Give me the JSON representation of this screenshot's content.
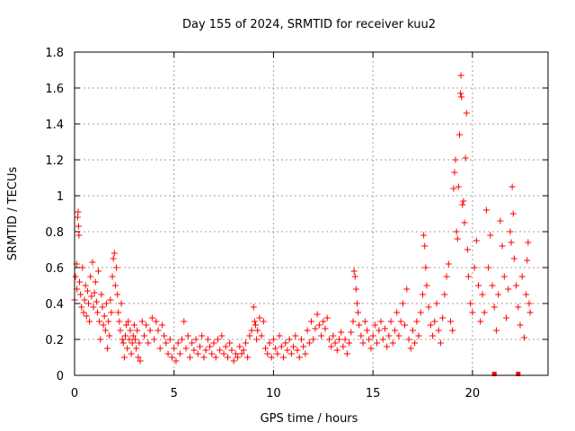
{
  "chart_data": {
    "type": "scatter",
    "title": "Day 155 of 2024, SRMTID for receiver kuu2",
    "xlabel": "GPS time / hours",
    "ylabel": "SRMTID / TECUs",
    "xlim": [
      0,
      23.8
    ],
    "ylim": [
      0,
      1.8
    ],
    "xticks": [
      0,
      5,
      10,
      15,
      20
    ],
    "xtick_labels": [
      "0",
      "5",
      "10",
      "15",
      "20"
    ],
    "yticks": [
      0,
      0.2,
      0.4,
      0.6,
      0.8,
      1,
      1.2,
      1.4,
      1.6,
      1.8
    ],
    "ytick_labels": [
      "0",
      "0.2",
      "0.4",
      "0.6",
      "0.8",
      "1",
      "1.2",
      "1.4",
      "1.6",
      "1.8"
    ],
    "grid": true,
    "marker": "+",
    "series": [
      {
        "name": "SRMTID",
        "color": "#ff0000",
        "points": [
          [
            0.0,
            0.42
          ],
          [
            0.05,
            0.55
          ],
          [
            0.1,
            0.62
          ],
          [
            0.12,
            0.48
          ],
          [
            0.15,
            0.88
          ],
          [
            0.18,
            0.91
          ],
          [
            0.2,
            0.83
          ],
          [
            0.22,
            0.78
          ],
          [
            0.25,
            0.52
          ],
          [
            0.3,
            0.45
          ],
          [
            0.35,
            0.38
          ],
          [
            0.4,
            0.6
          ],
          [
            0.45,
            0.35
          ],
          [
            0.5,
            0.42
          ],
          [
            0.55,
            0.5
          ],
          [
            0.6,
            0.33
          ],
          [
            0.65,
            0.47
          ],
          [
            0.7,
            0.4
          ],
          [
            0.75,
            0.3
          ],
          [
            0.8,
            0.55
          ],
          [
            0.85,
            0.44
          ],
          [
            0.9,
            0.63
          ],
          [
            0.95,
            0.38
          ],
          [
            1.0,
            0.46
          ],
          [
            1.05,
            0.52
          ],
          [
            1.1,
            0.41
          ],
          [
            1.15,
            0.35
          ],
          [
            1.2,
            0.58
          ],
          [
            1.25,
            0.3
          ],
          [
            1.3,
            0.2
          ],
          [
            1.35,
            0.45
          ],
          [
            1.4,
            0.38
          ],
          [
            1.45,
            0.28
          ],
          [
            1.5,
            0.33
          ],
          [
            1.55,
            0.25
          ],
          [
            1.6,
            0.4
          ],
          [
            1.65,
            0.15
          ],
          [
            1.7,
            0.3
          ],
          [
            1.75,
            0.22
          ],
          [
            1.8,
            0.42
          ],
          [
            1.85,
            0.35
          ],
          [
            1.9,
            0.55
          ],
          [
            1.95,
            0.65
          ],
          [
            2.0,
            0.68
          ],
          [
            2.05,
            0.5
          ],
          [
            2.1,
            0.6
          ],
          [
            2.15,
            0.45
          ],
          [
            2.2,
            0.35
          ],
          [
            2.25,
            0.3
          ],
          [
            2.3,
            0.25
          ],
          [
            2.35,
            0.4
          ],
          [
            2.4,
            0.2
          ],
          [
            2.45,
            0.18
          ],
          [
            2.5,
            0.1
          ],
          [
            2.55,
            0.22
          ],
          [
            2.6,
            0.28
          ],
          [
            2.65,
            0.15
          ],
          [
            2.7,
            0.3
          ],
          [
            2.75,
            0.2
          ],
          [
            2.8,
            0.25
          ],
          [
            2.85,
            0.12
          ],
          [
            2.9,
            0.18
          ],
          [
            2.95,
            0.22
          ],
          [
            3.0,
            0.28
          ],
          [
            3.05,
            0.2
          ],
          [
            3.1,
            0.15
          ],
          [
            3.15,
            0.25
          ],
          [
            3.2,
            0.1
          ],
          [
            3.25,
            0.18
          ],
          [
            3.3,
            0.08
          ],
          [
            3.4,
            0.3
          ],
          [
            3.5,
            0.22
          ],
          [
            3.6,
            0.28
          ],
          [
            3.7,
            0.18
          ],
          [
            3.8,
            0.25
          ],
          [
            3.9,
            0.32
          ],
          [
            4.0,
            0.2
          ],
          [
            4.1,
            0.3
          ],
          [
            4.2,
            0.25
          ],
          [
            4.3,
            0.15
          ],
          [
            4.4,
            0.28
          ],
          [
            4.5,
            0.22
          ],
          [
            4.6,
            0.18
          ],
          [
            4.7,
            0.12
          ],
          [
            4.8,
            0.2
          ],
          [
            4.9,
            0.1
          ],
          [
            5.0,
            0.15
          ],
          [
            5.1,
            0.08
          ],
          [
            5.2,
            0.18
          ],
          [
            5.3,
            0.12
          ],
          [
            5.4,
            0.2
          ],
          [
            5.5,
            0.3
          ],
          [
            5.6,
            0.15
          ],
          [
            5.7,
            0.22
          ],
          [
            5.8,
            0.1
          ],
          [
            5.9,
            0.18
          ],
          [
            6.0,
            0.14
          ],
          [
            6.1,
            0.2
          ],
          [
            6.2,
            0.12
          ],
          [
            6.3,
            0.16
          ],
          [
            6.4,
            0.22
          ],
          [
            6.5,
            0.1
          ],
          [
            6.6,
            0.14
          ],
          [
            6.7,
            0.2
          ],
          [
            6.8,
            0.16
          ],
          [
            6.9,
            0.12
          ],
          [
            7.0,
            0.18
          ],
          [
            7.1,
            0.1
          ],
          [
            7.2,
            0.2
          ],
          [
            7.3,
            0.14
          ],
          [
            7.4,
            0.22
          ],
          [
            7.5,
            0.12
          ],
          [
            7.6,
            0.16
          ],
          [
            7.7,
            0.1
          ],
          [
            7.8,
            0.18
          ],
          [
            7.9,
            0.14
          ],
          [
            8.0,
            0.08
          ],
          [
            8.1,
            0.12
          ],
          [
            8.2,
            0.1
          ],
          [
            8.3,
            0.16
          ],
          [
            8.4,
            0.12
          ],
          [
            8.5,
            0.14
          ],
          [
            8.6,
            0.18
          ],
          [
            8.7,
            0.1
          ],
          [
            8.8,
            0.22
          ],
          [
            8.9,
            0.25
          ],
          [
            9.0,
            0.38
          ],
          [
            9.05,
            0.3
          ],
          [
            9.1,
            0.28
          ],
          [
            9.15,
            0.2
          ],
          [
            9.2,
            0.25
          ],
          [
            9.3,
            0.32
          ],
          [
            9.4,
            0.22
          ],
          [
            9.5,
            0.3
          ],
          [
            9.6,
            0.15
          ],
          [
            9.7,
            0.12
          ],
          [
            9.8,
            0.18
          ],
          [
            9.9,
            0.1
          ],
          [
            10.0,
            0.2
          ],
          [
            10.1,
            0.15
          ],
          [
            10.2,
            0.12
          ],
          [
            10.3,
            0.22
          ],
          [
            10.4,
            0.16
          ],
          [
            10.5,
            0.1
          ],
          [
            10.6,
            0.18
          ],
          [
            10.7,
            0.14
          ],
          [
            10.8,
            0.2
          ],
          [
            10.9,
            0.12
          ],
          [
            11.0,
            0.16
          ],
          [
            11.1,
            0.22
          ],
          [
            11.2,
            0.14
          ],
          [
            11.3,
            0.1
          ],
          [
            11.4,
            0.2
          ],
          [
            11.5,
            0.16
          ],
          [
            11.6,
            0.12
          ],
          [
            11.7,
            0.25
          ],
          [
            11.8,
            0.18
          ],
          [
            11.9,
            0.3
          ],
          [
            12.0,
            0.2
          ],
          [
            12.1,
            0.26
          ],
          [
            12.2,
            0.34
          ],
          [
            12.3,
            0.28
          ],
          [
            12.4,
            0.22
          ],
          [
            12.5,
            0.3
          ],
          [
            12.6,
            0.26
          ],
          [
            12.7,
            0.32
          ],
          [
            12.8,
            0.2
          ],
          [
            12.9,
            0.16
          ],
          [
            13.0,
            0.22
          ],
          [
            13.1,
            0.18
          ],
          [
            13.2,
            0.14
          ],
          [
            13.3,
            0.2
          ],
          [
            13.4,
            0.24
          ],
          [
            13.5,
            0.16
          ],
          [
            13.6,
            0.2
          ],
          [
            13.7,
            0.12
          ],
          [
            13.8,
            0.18
          ],
          [
            13.9,
            0.24
          ],
          [
            14.0,
            0.3
          ],
          [
            14.05,
            0.58
          ],
          [
            14.1,
            0.55
          ],
          [
            14.15,
            0.48
          ],
          [
            14.2,
            0.4
          ],
          [
            14.25,
            0.35
          ],
          [
            14.3,
            0.28
          ],
          [
            14.4,
            0.22
          ],
          [
            14.5,
            0.18
          ],
          [
            14.6,
            0.3
          ],
          [
            14.7,
            0.25
          ],
          [
            14.8,
            0.2
          ],
          [
            14.9,
            0.15
          ],
          [
            15.0,
            0.22
          ],
          [
            15.1,
            0.28
          ],
          [
            15.2,
            0.18
          ],
          [
            15.3,
            0.25
          ],
          [
            15.4,
            0.3
          ],
          [
            15.5,
            0.2
          ],
          [
            15.6,
            0.26
          ],
          [
            15.7,
            0.16
          ],
          [
            15.8,
            0.22
          ],
          [
            15.9,
            0.3
          ],
          [
            16.0,
            0.18
          ],
          [
            16.1,
            0.25
          ],
          [
            16.2,
            0.35
          ],
          [
            16.3,
            0.22
          ],
          [
            16.4,
            0.3
          ],
          [
            16.5,
            0.4
          ],
          [
            16.6,
            0.28
          ],
          [
            16.7,
            0.48
          ],
          [
            16.8,
            0.2
          ],
          [
            16.9,
            0.15
          ],
          [
            17.0,
            0.25
          ],
          [
            17.1,
            0.18
          ],
          [
            17.2,
            0.3
          ],
          [
            17.3,
            0.22
          ],
          [
            17.4,
            0.35
          ],
          [
            17.5,
            0.45
          ],
          [
            17.55,
            0.78
          ],
          [
            17.6,
            0.72
          ],
          [
            17.65,
            0.6
          ],
          [
            17.7,
            0.5
          ],
          [
            17.8,
            0.38
          ],
          [
            17.9,
            0.28
          ],
          [
            18.0,
            0.22
          ],
          [
            18.1,
            0.3
          ],
          [
            18.2,
            0.4
          ],
          [
            18.3,
            0.25
          ],
          [
            18.4,
            0.18
          ],
          [
            18.5,
            0.32
          ],
          [
            18.6,
            0.45
          ],
          [
            18.7,
            0.55
          ],
          [
            18.8,
            0.62
          ],
          [
            18.9,
            0.3
          ],
          [
            19.0,
            0.25
          ],
          [
            19.05,
            1.04
          ],
          [
            19.1,
            1.13
          ],
          [
            19.15,
            1.2
          ],
          [
            19.2,
            0.8
          ],
          [
            19.25,
            0.76
          ],
          [
            19.3,
            1.05
          ],
          [
            19.35,
            1.34
          ],
          [
            19.4,
            1.57
          ],
          [
            19.42,
            1.67
          ],
          [
            19.45,
            1.55
          ],
          [
            19.5,
            0.95
          ],
          [
            19.55,
            0.97
          ],
          [
            19.6,
            0.85
          ],
          [
            19.65,
            1.21
          ],
          [
            19.7,
            1.46
          ],
          [
            19.75,
            0.7
          ],
          [
            19.8,
            0.55
          ],
          [
            19.9,
            0.4
          ],
          [
            20.0,
            0.35
          ],
          [
            20.1,
            0.6
          ],
          [
            20.2,
            0.75
          ],
          [
            20.3,
            0.5
          ],
          [
            20.4,
            0.3
          ],
          [
            20.5,
            0.45
          ],
          [
            20.6,
            0.35
          ],
          [
            20.7,
            0.92
          ],
          [
            20.8,
            0.6
          ],
          [
            20.9,
            0.78
          ],
          [
            21.0,
            0.5
          ],
          [
            21.1,
            0.38
          ],
          [
            21.2,
            0.25
          ],
          [
            21.3,
            0.45
          ],
          [
            21.4,
            0.86
          ],
          [
            21.5,
            0.72
          ],
          [
            21.6,
            0.55
          ],
          [
            21.7,
            0.32
          ],
          [
            21.8,
            0.48
          ],
          [
            21.9,
            0.8
          ],
          [
            21.95,
            0.74
          ],
          [
            22.0,
            1.05
          ],
          [
            22.05,
            0.9
          ],
          [
            22.1,
            0.65
          ],
          [
            22.2,
            0.5
          ],
          [
            22.3,
            0.38
          ],
          [
            22.4,
            0.28
          ],
          [
            22.5,
            0.55
          ],
          [
            22.6,
            0.21
          ],
          [
            22.7,
            0.45
          ],
          [
            22.75,
            0.64
          ],
          [
            22.8,
            0.74
          ],
          [
            22.85,
            0.4
          ],
          [
            22.9,
            0.35
          ]
        ]
      }
    ],
    "zero_markers": [
      21.1,
      22.3
    ]
  }
}
